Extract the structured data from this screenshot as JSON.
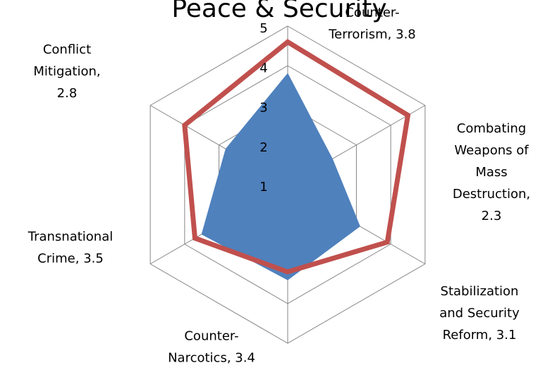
{
  "chart_data": {
    "type": "radar",
    "title": "Peace & Security",
    "categories": [
      "Counter-Terrorism, 3.8",
      "Combating Weapons of Mass Destruction, 2.3",
      "Stabilization and Security Reform, 3.1",
      "Counter-Narcotics, 3.4",
      "Transnational Crime, 3.5",
      "Conflict Mitigation, 2.8"
    ],
    "series": [
      {
        "color": "#4f81bd",
        "fill": true,
        "values": [
          3.8,
          2.3,
          3.1,
          3.4,
          3.5,
          2.8
        ]
      },
      {
        "color": "#c0504d",
        "fill": false,
        "values": [
          4.6,
          4.5,
          3.9,
          3.2,
          3.7,
          4.0
        ]
      }
    ],
    "ylim": [
      1,
      5
    ],
    "yticks": [
      1,
      2,
      3,
      4,
      5
    ],
    "grid": true
  }
}
